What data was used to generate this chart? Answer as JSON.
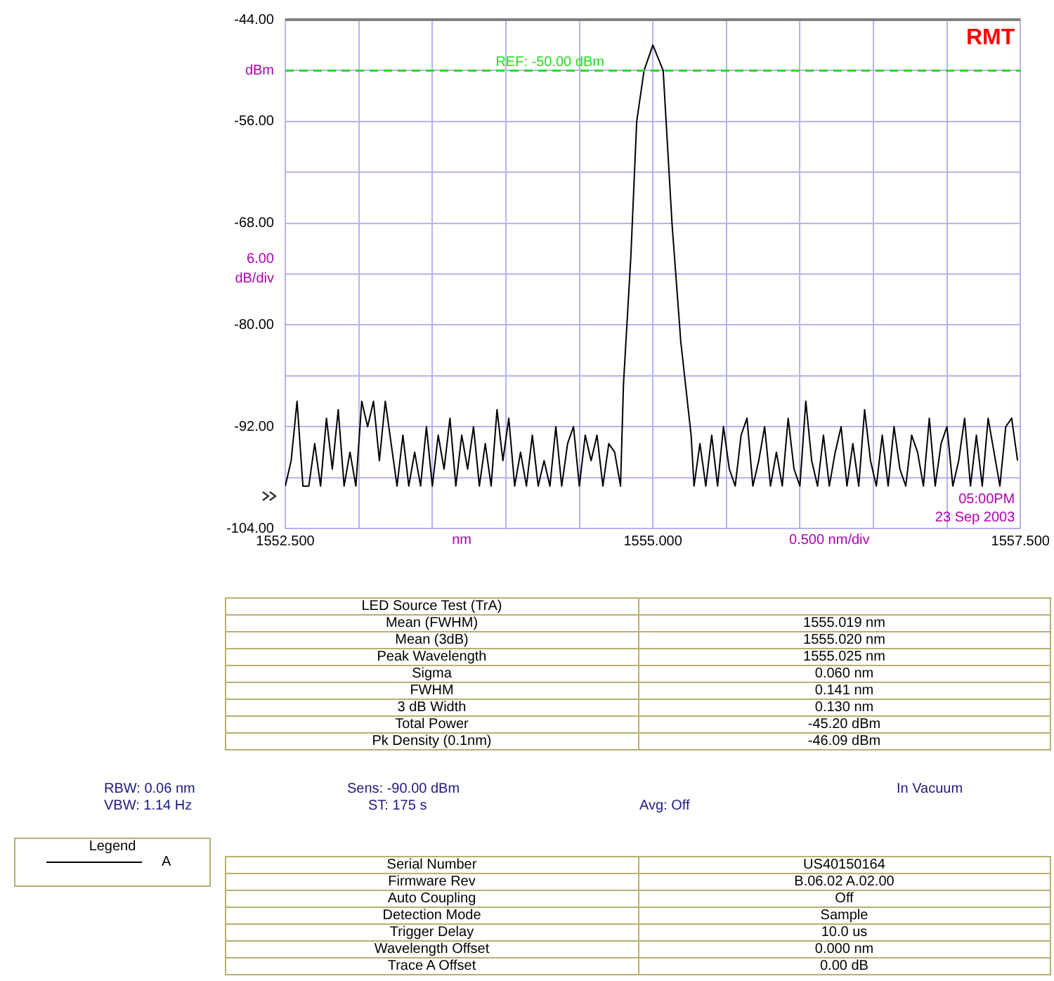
{
  "chart_data": {
    "type": "line",
    "xlabel": "nm",
    "ylabel": "dBm",
    "xlim": [
      1552.5,
      1557.5
    ],
    "xticks": [
      {
        "value": 1552.5,
        "label": "1552.500"
      },
      {
        "value": 1553,
        "label": null
      },
      {
        "value": 1553.5,
        "label": null
      },
      {
        "value": 1554,
        "label": null
      },
      {
        "value": 1554.5,
        "label": null
      },
      {
        "value": 1555,
        "label": "1555.000"
      },
      {
        "value": 1555.5,
        "label": null
      },
      {
        "value": 1556,
        "label": null
      },
      {
        "value": 1556.5,
        "label": null
      },
      {
        "value": 1557,
        "label": null
      },
      {
        "value": 1557.5,
        "label": "1557.500"
      }
    ],
    "ylim": [
      -104,
      -44
    ],
    "yticks": [
      {
        "value": -104,
        "label": "-104.00"
      },
      {
        "value": -98,
        "label": null
      },
      {
        "value": -92,
        "label": "-92.00"
      },
      {
        "value": -86,
        "label": null
      },
      {
        "value": -80,
        "label": "-80.00"
      },
      {
        "value": -74,
        "label": null
      },
      {
        "value": -68,
        "label": "-68.00"
      },
      {
        "value": -62,
        "label": null
      },
      {
        "value": -56,
        "label": "-56.00"
      },
      {
        "value": -50,
        "label": null
      },
      {
        "value": -44,
        "label": "-44.00"
      }
    ],
    "grid": true,
    "legend": "bottom left",
    "legend_title": "Legend",
    "marker": "none",
    "line_style": "solid",
    "ref_lines": [
      {
        "axis": "y",
        "value": -50,
        "label": "REF: -50.00 dBm",
        "color": "#22dd22",
        "line_style": "dashed"
      }
    ],
    "series": [
      {
        "name": "A",
        "color": "#000000",
        "x": [
          1552.5,
          1552.54,
          1552.58,
          1552.62,
          1552.66,
          1552.7,
          1552.74,
          1552.78,
          1552.82,
          1552.86,
          1552.9,
          1552.94,
          1552.98,
          1553.02,
          1553.06,
          1553.1,
          1553.14,
          1553.18,
          1553.22,
          1553.26,
          1553.3,
          1553.34,
          1553.38,
          1553.42,
          1553.46,
          1553.5,
          1553.54,
          1553.58,
          1553.62,
          1553.66,
          1553.7,
          1553.74,
          1553.78,
          1553.82,
          1553.86,
          1553.9,
          1553.94,
          1553.98,
          1554.02,
          1554.06,
          1554.1,
          1554.14,
          1554.18,
          1554.22,
          1554.26,
          1554.3,
          1554.34,
          1554.38,
          1554.42,
          1554.46,
          1554.5,
          1554.54,
          1554.58,
          1554.62,
          1554.66,
          1554.7,
          1554.74,
          1554.78,
          1554.8,
          1554.85,
          1554.89,
          1554.94,
          1555.0,
          1555.07,
          1555.13,
          1555.19,
          1555.26,
          1555.28,
          1555.32,
          1555.36,
          1555.4,
          1555.44,
          1555.48,
          1555.52,
          1555.56,
          1555.6,
          1555.64,
          1555.68,
          1555.72,
          1555.76,
          1555.8,
          1555.84,
          1555.88,
          1555.92,
          1555.96,
          1556.0,
          1556.04,
          1556.08,
          1556.12,
          1556.16,
          1556.2,
          1556.24,
          1556.28,
          1556.32,
          1556.36,
          1556.4,
          1556.44,
          1556.48,
          1556.52,
          1556.56,
          1556.6,
          1556.64,
          1556.68,
          1556.72,
          1556.76,
          1556.8,
          1556.84,
          1556.88,
          1556.92,
          1556.96,
          1557.0,
          1557.04,
          1557.08,
          1557.12,
          1557.16,
          1557.2,
          1557.24,
          1557.28,
          1557.32,
          1557.36,
          1557.4,
          1557.44,
          1557.48
        ],
        "values": [
          -99,
          -96,
          -89,
          -99,
          -99,
          -94,
          -99,
          -91,
          -97,
          -90,
          -99,
          -95,
          -99,
          -89,
          -92,
          -89,
          -96,
          -89,
          -94,
          -99,
          -93,
          -99,
          -95,
          -99,
          -92,
          -99,
          -93,
          -97,
          -91,
          -99,
          -93,
          -97,
          -92,
          -99,
          -94,
          -99,
          -90,
          -96,
          -91,
          -99,
          -95,
          -99,
          -93,
          -99,
          -96,
          -99,
          -92,
          -99,
          -94,
          -92,
          -99,
          -93,
          -96,
          -93,
          -99,
          -94,
          -95,
          -99,
          -87,
          -72,
          -56,
          -50,
          -47,
          -50,
          -68,
          -82,
          -93,
          -99,
          -94,
          -99,
          -93,
          -99,
          -92,
          -97,
          -99,
          -93,
          -91,
          -99,
          -96,
          -92,
          -99,
          -95,
          -99,
          -91,
          -97,
          -99,
          -89,
          -96,
          -99,
          -93,
          -99,
          -95,
          -92,
          -99,
          -94,
          -99,
          -90,
          -96,
          -99,
          -93,
          -99,
          -92,
          -97,
          -99,
          -93,
          -95,
          -99,
          -91,
          -99,
          -94,
          -92,
          -99,
          -96,
          -91,
          -99,
          -93,
          -99,
          -91,
          -95,
          -99,
          -92,
          -91,
          -96
        ]
      }
    ],
    "annotations": [
      "6.00 dB/div",
      "0.500 nm/div",
      "RMT",
      "05:00PM",
      "23 Sep 2003",
      "LED Source Test (TrA)",
      "Mean (FWHM)",
      "1555.019 nm",
      "Mean (3dB)",
      "1555.020 nm",
      "Peak Wavelength",
      "1555.025 nm",
      "Sigma",
      "0.060 nm",
      "FWHM",
      "0.141 nm",
      "3 dB Width",
      "0.130 nm",
      "Total Power",
      "-45.20 dBm",
      "Pk Density (0.1nm)",
      "-46.09 dBm",
      "RBW: 0.06 nm",
      "VBW: 1.14 Hz",
      "Sens: -90.00 dBm",
      "ST: 175 s",
      "Avg: Off",
      "In Vacuum",
      "Serial Number",
      "US40150164",
      "Firmware Rev",
      "B.06.02 A.02.00",
      "Auto Coupling",
      "Off",
      "Detection Mode",
      "Sample",
      "Trigger Delay",
      "10.0 us",
      "Wavelength Offset",
      "0.000 nm",
      "Trace A Offset",
      "0.00 dB"
    ]
  }
}
